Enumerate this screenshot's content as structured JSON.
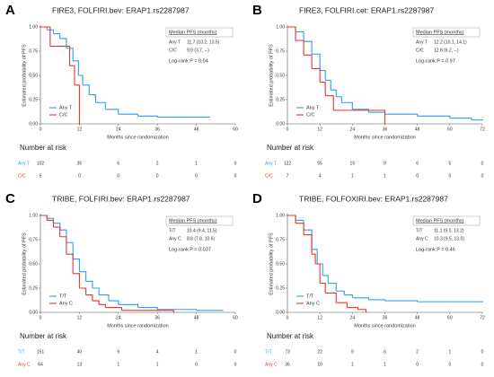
{
  "chart_data": [
    {
      "type": "step",
      "label": "A",
      "title": "FIRE3, FOLFIRI.bev: ERAP1.rs2287987",
      "xlabel": "Months since randomization",
      "ylabel": "Estimated probability of PFS",
      "xlim": [
        0,
        60
      ],
      "xticks": [
        0,
        12,
        24,
        36,
        48,
        60
      ],
      "ylim": [
        0,
        1
      ],
      "yticks": [
        {
          "value": 0,
          "label": "0.00"
        },
        0.25,
        {
          "value": 0.5,
          "label": "0.50"
        },
        0.75,
        {
          "value": 1,
          "label": "1.00"
        }
      ],
      "median_title": "Median PFS (months)",
      "pvalue": "Log-rank P = 0.04",
      "risk_title": "Number at risk",
      "series": [
        {
          "name": "Any T",
          "color": "#2a9df4",
          "median": "11.7 (10.2, 13.5)",
          "at_risk": [
            102,
            35,
            6,
            2,
            1,
            0
          ],
          "x": [
            0,
            2,
            4,
            6,
            8,
            10,
            11.7,
            13,
            15,
            17,
            20,
            24,
            30,
            36,
            52
          ],
          "values": [
            1,
            0.97,
            0.93,
            0.88,
            0.78,
            0.65,
            0.5,
            0.4,
            0.3,
            0.22,
            0.15,
            0.1,
            0.08,
            0.07,
            0.07
          ]
        },
        {
          "name": "C/C",
          "color": "#e8332a",
          "median": "9.9 (3.7, --)",
          "at_risk": [
            5,
            0,
            0,
            0,
            0,
            0
          ],
          "x": [
            0,
            3,
            9,
            10.5,
            12
          ],
          "values": [
            1,
            0.8,
            0.6,
            0.4,
            0
          ]
        }
      ]
    },
    {
      "type": "step",
      "label": "B",
      "title": "FIRE3, FOLFIRI.cet: ERAP1.rs2287987",
      "xlabel": "Months since randomization",
      "ylabel": "Estimated probability of PFS",
      "xlim": [
        0,
        72
      ],
      "xticks": [
        0,
        12,
        24,
        36,
        48,
        60,
        72
      ],
      "ylim": [
        0,
        1
      ],
      "yticks": [
        {
          "value": 0,
          "label": "0.00"
        },
        0.25,
        {
          "value": 0.5,
          "label": "0.50"
        },
        0.75,
        {
          "value": 1,
          "label": "1.00"
        }
      ],
      "median_title": "Median PFS (months)",
      "pvalue": "Log-rank P = 0.97",
      "risk_title": "Number at risk",
      "series": [
        {
          "name": "Any T",
          "color": "#2a9df4",
          "median": "12.2 (10.1, 14.1)",
          "at_risk": [
            122,
            55,
            15,
            9,
            6,
            5,
            0
          ],
          "x": [
            0,
            3,
            6,
            9,
            12,
            14,
            16,
            18,
            20,
            24,
            30,
            36,
            48,
            60,
            68,
            72
          ],
          "values": [
            1,
            0.95,
            0.85,
            0.72,
            0.55,
            0.45,
            0.35,
            0.28,
            0.22,
            0.15,
            0.12,
            0.1,
            0.08,
            0.06,
            0.04,
            0.04
          ]
        },
        {
          "name": "C/C",
          "color": "#e8332a",
          "median": "12.8 (6.2, --)",
          "at_risk": [
            7,
            4,
            1,
            1,
            0,
            0,
            0
          ],
          "x": [
            0,
            3,
            6,
            9,
            12,
            14,
            17,
            36
          ],
          "values": [
            1,
            0.86,
            0.71,
            0.57,
            0.43,
            0.29,
            0.14,
            0
          ]
        }
      ]
    },
    {
      "type": "step",
      "label": "C",
      "title": "TRIBE, FOLFIRI.bev: ERAP1.rs2287987",
      "xlabel": "Months since randomization",
      "ylabel": "Estimated probability of PFS",
      "xlim": [
        0,
        60
      ],
      "xticks": [
        0,
        12,
        24,
        36,
        48,
        60
      ],
      "ylim": [
        0,
        1
      ],
      "yticks": [
        {
          "value": 0,
          "label": "0.00"
        },
        0.25,
        {
          "value": 0.5,
          "label": "0.50"
        },
        0.75,
        {
          "value": 1,
          "label": "1.00"
        }
      ],
      "median_title": "Median PFS (months)",
      "pvalue": "Log-rank P = 0.037",
      "risk_title": "Number at risk",
      "series": [
        {
          "name": "T/T",
          "color": "#2a9df4",
          "median": "10.4 (9.4, 11.5)",
          "at_risk": [
            151,
            40,
            9,
            4,
            1,
            0
          ],
          "x": [
            0,
            2,
            4,
            6,
            8,
            10,
            12,
            14,
            16,
            18,
            21,
            24,
            30,
            36,
            48,
            56
          ],
          "values": [
            1,
            0.97,
            0.92,
            0.85,
            0.72,
            0.55,
            0.42,
            0.32,
            0.25,
            0.18,
            0.12,
            0.08,
            0.05,
            0.03,
            0.02,
            0.02
          ]
        },
        {
          "name": "Any C",
          "color": "#e8332a",
          "median": "8.8 (7.8, 10.6)",
          "at_risk": [
            64,
            13,
            1,
            1,
            0,
            0
          ],
          "x": [
            0,
            2,
            4,
            6,
            8,
            10,
            12,
            14,
            16,
            18,
            20,
            25,
            40,
            41
          ],
          "values": [
            1,
            0.95,
            0.88,
            0.78,
            0.6,
            0.4,
            0.25,
            0.18,
            0.12,
            0.08,
            0.05,
            0.02,
            0.02,
            0
          ]
        }
      ]
    },
    {
      "type": "step",
      "label": "D",
      "title": "TRIBE, FOLFOXIRI.bev: ERAP1.rs2287987",
      "xlabel": "Months since randomization",
      "ylabel": "Estimated probability of PFS",
      "xlim": [
        0,
        72
      ],
      "xticks": [
        0,
        12,
        24,
        36,
        48,
        60,
        72
      ],
      "ylim": [
        0,
        1
      ],
      "yticks": [
        {
          "value": 0,
          "label": "0.00"
        },
        0.25,
        {
          "value": 0.5,
          "label": "0.50"
        },
        0.75,
        {
          "value": 1,
          "label": "1.00"
        }
      ],
      "median_title": "Median PFS (months)",
      "pvalue": "Log-rank P = 0.46",
      "risk_title": "Number at risk",
      "series": [
        {
          "name": "T/T",
          "color": "#2a9df4",
          "median": "11.1 (9.0, 13.2)",
          "at_risk": [
            73,
            22,
            9,
            6,
            2,
            1,
            0
          ],
          "x": [
            0,
            3,
            6,
            9,
            11,
            13,
            15,
            18,
            21,
            24,
            30,
            36,
            48,
            60,
            72
          ],
          "values": [
            1,
            0.95,
            0.85,
            0.65,
            0.5,
            0.38,
            0.3,
            0.22,
            0.18,
            0.15,
            0.13,
            0.12,
            0.11,
            0.11,
            0.11
          ]
        },
        {
          "name": "Any C",
          "color": "#e8332a",
          "median": "10.3 (9.5, 13.0)",
          "at_risk": [
            36,
            10,
            1,
            1,
            0,
            0,
            0
          ],
          "x": [
            0,
            3,
            6,
            9,
            10.3,
            12,
            14,
            18,
            22,
            26,
            29
          ],
          "values": [
            1,
            0.92,
            0.8,
            0.6,
            0.5,
            0.3,
            0.2,
            0.1,
            0.05,
            0.03,
            0
          ]
        }
      ]
    }
  ]
}
